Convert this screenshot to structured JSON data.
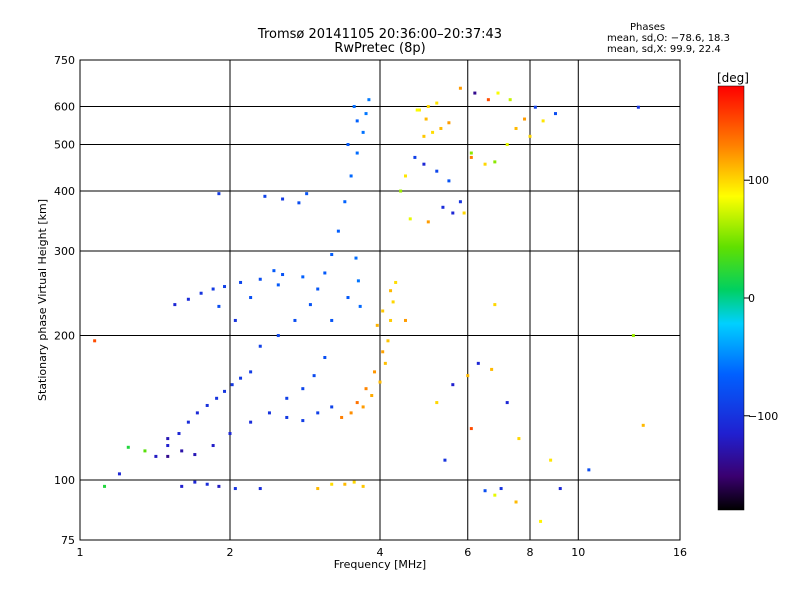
{
  "header": {
    "title_line1": "Tromsø 20141105 20:36:00–20:37:43",
    "title_line2": "RwPretec (8p)",
    "stats_heading": "Phases",
    "stats_line1": "mean, sd,O: −78.6, 18.3",
    "stats_line2": "mean, sd,X:  99.9, 22.4"
  },
  "colorbar": {
    "unit": "[deg]",
    "tick_labels": [
      "100",
      "0",
      "−100"
    ],
    "tick_values": [
      100,
      0,
      -100
    ],
    "range": [
      -180,
      180
    ]
  },
  "chart_data": {
    "type": "scatter",
    "xlabel": "Frequency [MHz]",
    "ylabel": "Stationary phase Virtual Height [km]",
    "xscale": "log",
    "yscale": "log",
    "xlim": [
      1,
      16
    ],
    "ylim": [
      75,
      750
    ],
    "xticks": [
      1,
      2,
      4,
      6,
      8,
      10,
      16
    ],
    "xtick_labels": [
      "1",
      "2",
      "4",
      "6",
      "8",
      "10",
      "16"
    ],
    "yticks": [
      75,
      100,
      200,
      300,
      400,
      500,
      600,
      750
    ],
    "ytick_labels": [
      "75",
      "100",
      "200",
      "300",
      "400",
      "500",
      "600",
      "750"
    ],
    "grid_x": [
      2,
      4,
      6,
      8,
      10
    ],
    "grid_y": [
      100,
      200,
      300,
      400,
      500,
      600
    ],
    "series": [
      {
        "points": [
          [
            1.42,
            112,
            -120
          ],
          [
            1.5,
            118,
            -115
          ],
          [
            1.58,
            125,
            -110
          ],
          [
            1.65,
            132,
            -105
          ],
          [
            1.72,
            138,
            -108
          ],
          [
            1.8,
            143,
            -102
          ],
          [
            1.88,
            148,
            -100
          ],
          [
            1.95,
            153,
            -98
          ],
          [
            2.02,
            158,
            -96
          ],
          [
            2.1,
            163,
            -95
          ],
          [
            2.2,
            168,
            -93
          ],
          [
            1.5,
            112,
            -140
          ],
          [
            1.6,
            115,
            -130
          ],
          [
            1.7,
            113,
            -125
          ],
          [
            1.85,
            118,
            -118
          ],
          [
            2.0,
            125,
            -110
          ],
          [
            2.2,
            132,
            -105
          ],
          [
            2.4,
            138,
            -100
          ],
          [
            2.6,
            135,
            -95
          ],
          [
            2.8,
            133,
            -92
          ],
          [
            3.0,
            138,
            -90
          ],
          [
            3.2,
            142,
            -88
          ],
          [
            2.3,
            190,
            -90
          ],
          [
            2.5,
            200,
            -85
          ],
          [
            2.7,
            215,
            -80
          ],
          [
            2.9,
            232,
            -75
          ],
          [
            3.0,
            250,
            -72
          ],
          [
            3.1,
            270,
            -70
          ],
          [
            3.2,
            295,
            -68
          ],
          [
            3.3,
            330,
            -66
          ],
          [
            3.4,
            380,
            -64
          ],
          [
            3.5,
            430,
            -62
          ],
          [
            3.6,
            480,
            -60
          ],
          [
            3.7,
            530,
            -58
          ],
          [
            3.75,
            580,
            -56
          ],
          [
            3.8,
            620,
            -55
          ],
          [
            3.55,
            600,
            -60
          ],
          [
            3.6,
            560,
            -65
          ],
          [
            3.45,
            500,
            -70
          ],
          [
            2.05,
            215,
            -100
          ],
          [
            1.9,
            230,
            -80
          ],
          [
            2.2,
            240,
            -78
          ],
          [
            2.5,
            255,
            -70
          ],
          [
            2.8,
            265,
            -65
          ],
          [
            1.55,
            232,
            -110
          ],
          [
            1.65,
            238,
            -105
          ],
          [
            1.75,
            245,
            -100
          ],
          [
            1.85,
            250,
            -95
          ],
          [
            1.95,
            253,
            -90
          ],
          [
            2.1,
            258,
            -85
          ],
          [
            2.3,
            262,
            -80
          ],
          [
            2.55,
            268,
            -76
          ],
          [
            2.75,
            378,
            -80
          ],
          [
            2.85,
            395,
            -75
          ],
          [
            2.55,
            385,
            -95
          ],
          [
            2.35,
            390,
            -88
          ],
          [
            3.35,
            135,
            130
          ],
          [
            3.5,
            138,
            125
          ],
          [
            3.7,
            142,
            120
          ],
          [
            3.85,
            150,
            115
          ],
          [
            4.0,
            160,
            110
          ],
          [
            4.1,
            175,
            108
          ],
          [
            4.15,
            195,
            106
          ],
          [
            4.2,
            215,
            104
          ],
          [
            4.25,
            235,
            100
          ],
          [
            4.3,
            258,
            98
          ],
          [
            3.9,
            168,
            122
          ],
          [
            3.75,
            155,
            128
          ],
          [
            3.6,
            145,
            135
          ],
          [
            4.05,
            185,
            118
          ],
          [
            3.4,
            98,
            110
          ],
          [
            3.55,
            99,
            100
          ],
          [
            3.7,
            97,
            105
          ],
          [
            3.0,
            96,
            110
          ],
          [
            3.2,
            98,
            98
          ],
          [
            1.6,
            97,
            -115
          ],
          [
            1.7,
            99,
            -110
          ],
          [
            1.8,
            98,
            -105
          ],
          [
            1.9,
            97,
            -120
          ],
          [
            2.05,
            96,
            -100
          ],
          [
            2.3,
            96,
            -105
          ],
          [
            4.8,
            590,
            90
          ],
          [
            5.0,
            600,
            100
          ],
          [
            5.2,
            610,
            95
          ],
          [
            4.9,
            520,
            105
          ],
          [
            5.1,
            530,
            98
          ],
          [
            5.3,
            540,
            110
          ],
          [
            5.5,
            555,
            120
          ],
          [
            4.7,
            470,
            -90
          ],
          [
            4.9,
            455,
            -110
          ],
          [
            5.2,
            440,
            -85
          ],
          [
            5.5,
            420,
            -75
          ],
          [
            5.8,
            380,
            -100
          ],
          [
            5.9,
            360,
            100
          ],
          [
            4.6,
            350,
            80
          ],
          [
            4.5,
            430,
            95
          ],
          [
            4.4,
            400,
            60
          ],
          [
            5.0,
            345,
            120
          ],
          [
            5.6,
            360,
            -110
          ],
          [
            6.1,
            470,
            130
          ],
          [
            6.5,
            455,
            100
          ],
          [
            6.8,
            460,
            55
          ],
          [
            7.2,
            500,
            80
          ],
          [
            7.5,
            540,
            110
          ],
          [
            8.0,
            520,
            100
          ],
          [
            8.5,
            560,
            95
          ],
          [
            9.0,
            580,
            -80
          ],
          [
            6.6,
            620,
            150
          ],
          [
            6.2,
            640,
            -140
          ],
          [
            5.8,
            655,
            120
          ],
          [
            6.9,
            640,
            85
          ],
          [
            7.3,
            620,
            70
          ],
          [
            6.5,
            95,
            -80
          ],
          [
            6.8,
            93,
            80
          ],
          [
            7.0,
            96,
            -100
          ],
          [
            7.5,
            90,
            110
          ],
          [
            6.0,
            165,
            110
          ],
          [
            6.3,
            175,
            -110
          ],
          [
            7.2,
            145,
            -110
          ],
          [
            6.7,
            170,
            110
          ],
          [
            5.6,
            158,
            -115
          ],
          [
            5.2,
            145,
            100
          ],
          [
            5.4,
            110,
            -100
          ],
          [
            6.1,
            128,
            150
          ],
          [
            7.6,
            122,
            100
          ],
          [
            8.8,
            110,
            95
          ],
          [
            9.2,
            96,
            -110
          ],
          [
            10.5,
            105,
            -80
          ],
          [
            13.5,
            130,
            110
          ],
          [
            13.2,
            598,
            -100
          ],
          [
            12.9,
            200,
            60
          ],
          [
            8.4,
            82,
            90
          ],
          [
            6.8,
            232,
            100
          ],
          [
            4.5,
            215,
            120
          ],
          [
            1.07,
            195,
            150
          ],
          [
            1.12,
            97,
            20
          ],
          [
            1.2,
            103,
            -110
          ],
          [
            1.25,
            117,
            20
          ],
          [
            1.35,
            115,
            40
          ],
          [
            1.5,
            122,
            -125
          ],
          [
            2.45,
            273,
            -70
          ],
          [
            3.65,
            230,
            -62
          ],
          [
            3.62,
            260,
            -57
          ],
          [
            3.58,
            290,
            -60
          ],
          [
            3.45,
            240,
            -70
          ],
          [
            3.2,
            215,
            -74
          ],
          [
            3.1,
            180,
            -78
          ],
          [
            2.95,
            165,
            -82
          ],
          [
            2.8,
            155,
            -85
          ],
          [
            2.6,
            148,
            -90
          ],
          [
            1.9,
            395,
            -95
          ],
          [
            4.2,
            248,
            110
          ],
          [
            4.05,
            225,
            105
          ],
          [
            3.95,
            210,
            112
          ],
          [
            5.35,
            370,
            -105
          ],
          [
            4.75,
            590,
            85
          ],
          [
            4.95,
            565,
            110
          ],
          [
            6.1,
            480,
            55
          ],
          [
            7.8,
            565,
            120
          ],
          [
            8.2,
            598,
            -90
          ]
        ]
      }
    ]
  }
}
